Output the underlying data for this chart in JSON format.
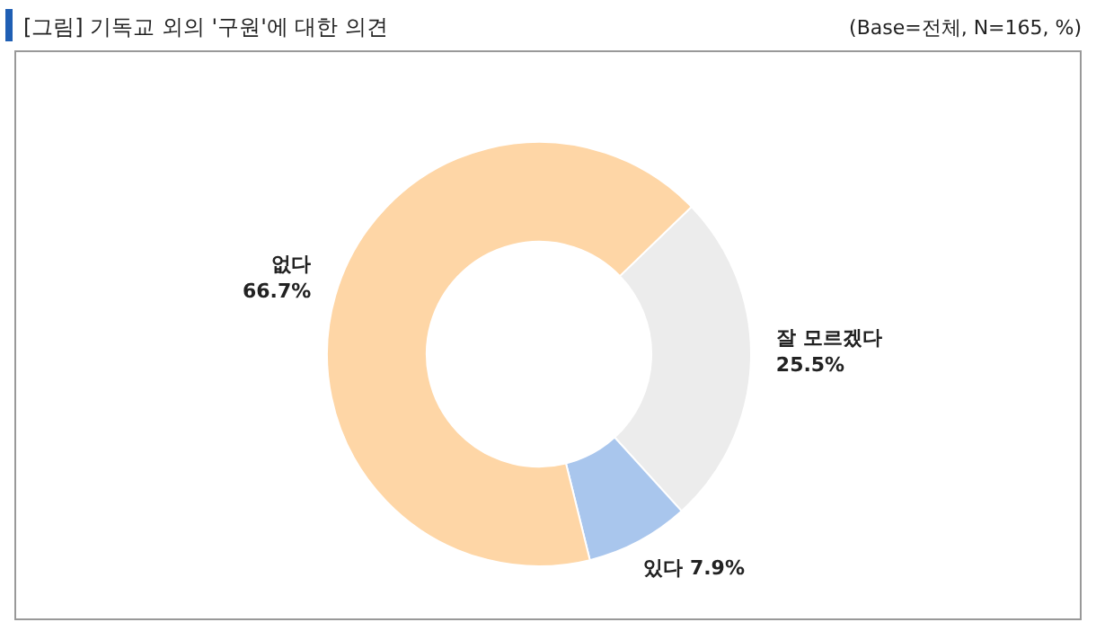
{
  "chart_data": {
    "type": "donut",
    "title": "[그림] 기독교 외의 '구원'에 대한 의견",
    "annotations": [
      "(Base=전체, N=165, %)"
    ],
    "categories": [
      "잘 모르겠다",
      "있다",
      "없다"
    ],
    "values": [
      25.5,
      7.9,
      66.7
    ],
    "colors": [
      "#ececec",
      "#a9c6ed",
      "#fed6a6"
    ],
    "value_labels": [
      "25.5%",
      "7.9%",
      "66.7%"
    ]
  }
}
